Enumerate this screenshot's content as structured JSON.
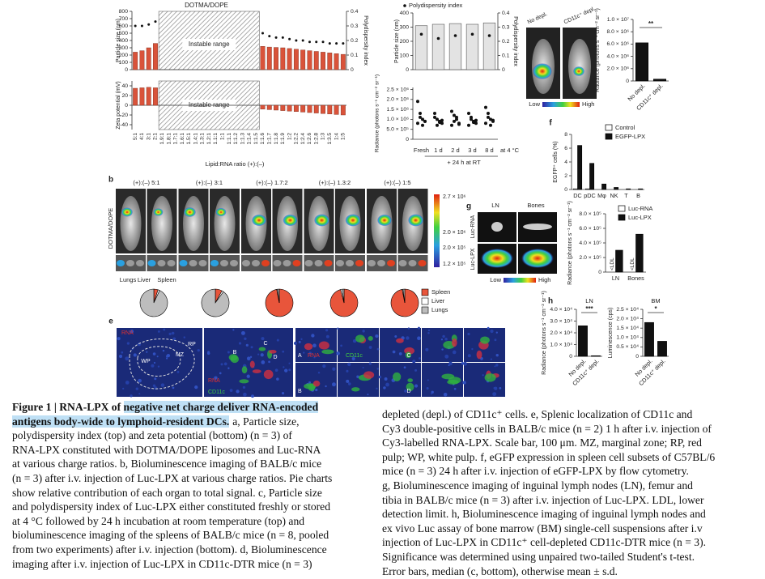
{
  "figure": {
    "a": {
      "title": "DOTMA/DOPE",
      "instable": "Instable range",
      "xlabel": "Lipid:RNA ratio (+):(–)",
      "categories": [
        "5:1",
        "4:1",
        "3:1",
        "2:1",
        "1.9:1",
        "1.8:1",
        "1.7:1",
        "1.6:1",
        "1.5:1",
        "1.4:1",
        "1.3:1",
        "1.2:1",
        "1.1:1",
        "1:1",
        "1:1.1",
        "1:1.2",
        "1:1.3",
        "1:1.4",
        "1:1.5",
        "1:1.6",
        "1:1.7",
        "1:1.8",
        "1:1.9",
        "1:2",
        "1:2.2",
        "1:2.4",
        "1:2.6",
        "1:2.8",
        "1:3",
        "1:3.5",
        "1:4",
        "1:5"
      ],
      "top": {
        "ylabel": "Particle size (nm)",
        "y2label": "Polydispersity index",
        "ylim": [
          0,
          800
        ],
        "yticks": [
          0,
          100,
          200,
          300,
          400,
          500,
          600,
          700,
          800
        ],
        "y2lim": [
          0,
          0.4
        ],
        "y2ticks": [
          0,
          0.1,
          0.2,
          0.3,
          0.4
        ],
        "size": [
          240,
          260,
          300,
          360,
          null,
          null,
          null,
          null,
          null,
          null,
          null,
          null,
          null,
          null,
          null,
          null,
          null,
          null,
          null,
          320,
          310,
          305,
          300,
          290,
          280,
          270,
          260,
          250,
          240,
          230,
          220,
          210
        ],
        "pdi": [
          0.3,
          0.3,
          0.31,
          0.33,
          null,
          null,
          null,
          null,
          null,
          null,
          null,
          null,
          null,
          null,
          null,
          null,
          null,
          null,
          null,
          0.25,
          0.23,
          0.22,
          0.22,
          0.21,
          0.2,
          0.2,
          0.19,
          0.19,
          0.19,
          0.18,
          0.18,
          0.18
        ]
      },
      "bottom": {
        "ylabel": "Zeta potential (mV)",
        "ylim": [
          -50,
          50
        ],
        "yticks": [
          -40,
          -20,
          0,
          20,
          40
        ],
        "values": [
          35,
          36,
          37,
          36,
          null,
          null,
          null,
          null,
          null,
          null,
          null,
          null,
          null,
          null,
          null,
          null,
          null,
          null,
          null,
          -8,
          -9,
          -10,
          -11,
          -12,
          -13,
          -14,
          -15,
          -16,
          -17,
          -18,
          -19,
          -20
        ]
      }
    },
    "b": {
      "label": "b",
      "side": "DOTMA/DOPE",
      "headers": [
        "(+):(–) 5:1",
        "(+):(–) 3:1",
        "(+):(–) 1.7:2",
        "(+):(–) 1.3:2",
        "(+):(–) 1:5"
      ],
      "scale": [
        "2.7 × 10⁶",
        "2.0 × 10⁶",
        "2.0 × 10⁵",
        "1.2 × 10⁵"
      ],
      "organs": [
        "Lungs",
        "Liver",
        "Spleen"
      ],
      "pies": {
        "series": [
          {
            "name": "Spleen",
            "color": "#e8553b"
          },
          {
            "name": "Liver",
            "color": "#ffffff"
          },
          {
            "name": "Lungs",
            "color": "#bdbdbd"
          }
        ],
        "values": [
          [
            5,
            2,
            93
          ],
          [
            8,
            2,
            90
          ],
          [
            97,
            1,
            2
          ],
          [
            96,
            2,
            2
          ],
          [
            97,
            1,
            2
          ]
        ]
      }
    },
    "c": {
      "legend": "Polydispersity index",
      "categories": [
        "Fresh",
        "1 d",
        "2 d",
        "3 d",
        "8 d"
      ],
      "note": "at 4 °C",
      "group": "+ 24 h at RT",
      "top": {
        "ylabel": "Particle size (nm)",
        "y2label": "Polydispersity index",
        "ylim": [
          0,
          400
        ],
        "yticks": [
          0,
          100,
          200,
          300,
          400
        ],
        "y2lim": [
          0,
          0.4
        ],
        "y2ticks": [
          0,
          0.1,
          0.2,
          0.3,
          0.4
        ],
        "size": [
          310,
          320,
          325,
          320,
          330
        ],
        "pdi": [
          0.25,
          0.22,
          0.24,
          0.25,
          0.24
        ]
      },
      "bottom": {
        "ylabel": "Radiance (photons s⁻¹ cm⁻² sr⁻¹)",
        "ylim": [
          0,
          2600000
        ],
        "yticks": [
          0,
          {
            "value": 500000,
            "label": "5.0 × 10⁵"
          },
          {
            "value": 1000000,
            "label": "1.0 × 10⁶"
          },
          {
            "value": 1500000,
            "label": "1.5 × 10⁶"
          },
          {
            "value": 2000000,
            "label": "2.0 × 10⁶"
          },
          {
            "value": 2500000,
            "label": "2.5 × 10⁶"
          }
        ],
        "points": [
          [
            1900000,
            1300000,
            1000000,
            900000,
            800000,
            1100000,
            700000,
            900000
          ],
          [
            1300000,
            1000000,
            900000,
            800000,
            1100000,
            700000,
            850000,
            950000
          ],
          [
            1400000,
            1200000,
            1000000,
            800000,
            700000,
            900000,
            1100000,
            750000
          ],
          [
            1300000,
            1100000,
            900000,
            800000,
            700000,
            1000000,
            850000,
            950000
          ],
          [
            1600000,
            1300000,
            1000000,
            900000,
            800000,
            1100000,
            700000,
            950000
          ]
        ]
      }
    },
    "d": {
      "images": [
        "No depl.",
        "CD11c⁺ depl."
      ],
      "low": "Low",
      "high": "High",
      "chart": {
        "ylabel": "Radiance (photons s⁻¹ cm⁻² sr⁻¹)",
        "ylim": [
          0,
          10000000
        ],
        "yticks": [
          0,
          {
            "value": 2000000,
            "label": "2.0 × 10⁶"
          },
          {
            "value": 4000000,
            "label": "4.0 × 10⁶"
          },
          {
            "value": 6000000,
            "label": "6.0 × 10⁶"
          },
          {
            "value": 8000000,
            "label": "8.0 × 10⁶"
          },
          {
            "value": 10000000,
            "label": "1.0 × 10⁷"
          }
        ],
        "categories": [
          "No depl.",
          "CD11c⁺ depl."
        ],
        "series": [
          {
            "color": "#111111",
            "values": [
              6200000,
              300000
            ]
          }
        ],
        "sig": "**"
      }
    },
    "e": {
      "label": "e",
      "labels": [
        "RNA",
        "WP",
        "MZ",
        "RP",
        "B",
        "C",
        "D",
        "RNA",
        "CD11c",
        "A",
        "RNA",
        "CD11c",
        "C",
        "B",
        "D"
      ]
    },
    "f": {
      "label": "f",
      "chart": {
        "ylabel": "EGFP⁺ cells (%)",
        "ylim": [
          0,
          8
        ],
        "yticks": [
          0,
          2,
          4,
          6,
          8
        ],
        "categories": [
          "DC",
          "pDC",
          "Mφ",
          "NK",
          "T",
          "B"
        ],
        "series": [
          {
            "name": "Control",
            "color": "#ffffff",
            "values": [
              0.1,
              0.1,
              0,
              0,
              0,
              0
            ]
          },
          {
            "name": "EGFP-LPX",
            "color": "#111111",
            "values": [
              6.4,
              3.8,
              0.8,
              0.3,
              0.1,
              0.1
            ]
          }
        ]
      }
    },
    "g": {
      "label": "g",
      "cols": [
        "LN",
        "Bones"
      ],
      "rows": [
        "Luc-RNA",
        "Luc-LPX"
      ],
      "low": "Low",
      "high": "High",
      "chart": {
        "ylabel": "Radiance (photons s⁻¹ cm⁻² sr⁻¹)",
        "ylim": [
          0,
          800000
        ],
        "yticks": [
          0,
          {
            "value": 200000,
            "label": "2.0 × 10⁵"
          },
          {
            "value": 400000,
            "label": "4.0 × 10⁵"
          },
          {
            "value": 600000,
            "label": "6.0 × 10⁵"
          },
          {
            "value": 800000,
            "label": "8.0 × 10⁵"
          }
        ],
        "categories": [
          "LN",
          "Bones"
        ],
        "series": [
          {
            "name": "Luc-RNA",
            "color": "#ffffff",
            "values": [
              null,
              null
            ]
          },
          {
            "name": "Luc-LPX",
            "color": "#111111",
            "values": [
              300000,
              520000
            ]
          }
        ],
        "ldl": [
          "<LDL",
          "<LDL"
        ]
      }
    },
    "h": {
      "label": "h",
      "ln": {
        "title": "LN",
        "ylabel": "Radiance (photons s⁻¹ cm⁻² sr⁻¹)",
        "ylim": [
          0,
          40000
        ],
        "yticks": [
          0,
          {
            "value": 10000,
            "label": "1.0 × 10⁴"
          },
          {
            "value": 20000,
            "label": "2.0 × 10⁴"
          },
          {
            "value": 30000,
            "label": "3.0 × 10⁴"
          },
          {
            "value": 40000,
            "label": "4.0 × 10⁴"
          }
        ],
        "categories": [
          "No depl.",
          "CD11c⁺ depl."
        ],
        "series": [
          {
            "color": "#111111",
            "values": [
              26000,
              500
            ]
          }
        ],
        "sig": "***"
      },
      "bm": {
        "title": "BM",
        "ylabel": "Luminescence (cps)",
        "ylim": [
          0,
          25000
        ],
        "yticks": [
          0,
          {
            "value": 5000,
            "label": "0.5 × 10⁴"
          },
          {
            "value": 10000,
            "label": "1.0 × 10⁴"
          },
          {
            "value": 15000,
            "label": "1.5 × 10⁴"
          },
          {
            "value": 20000,
            "label": "2.0 × 10⁴"
          },
          {
            "value": 25000,
            "label": "2.5 × 10⁴"
          }
        ],
        "categories": [
          "No depl.",
          "CD11c⁺ depl."
        ],
        "series": [
          {
            "color": "#111111",
            "values": [
              18000,
              8000
            ]
          }
        ],
        "sig": "*"
      }
    }
  },
  "caption": {
    "title": [
      "Figure 1 | RNA-LPX of ",
      "negative net charge deliver RNA-encoded",
      "antigens body-wide to lymphoid-resident DCs."
    ],
    "left": [
      "a, Particle size,",
      "polydispersity index (top) and zeta potential (bottom) (n = 3) of",
      "RNA-LPX constituted with DOTMA/DOPE liposomes and Luc-RNA",
      "at various charge ratios. b, Bioluminescence imaging of BALB/c mice",
      "(n = 3) after i.v. injection of Luc-LPX at various charge ratios. Pie charts",
      "show relative contribution of each organ to total signal. c, Particle size",
      "and polydispersity index of Luc-LPX either constituted freshly or stored",
      "at 4 °C followed by 24 h incubation at room temperature (top) and",
      "bioluminescence imaging of the spleens of BALB/c mice (n = 8, pooled",
      "from two experiments) after i.v. injection (bottom). d, Bioluminescence",
      "imaging after i.v. injection of Luc-LPX in CD11c-DTR mice (n = 3)"
    ],
    "right": [
      "depleted (depl.) of CD11c⁺ cells. e, Splenic localization of CD11c and",
      "Cy3 double-positive cells in BALB/c mice (n = 2) 1 h after i.v. injection of",
      "Cy3-labelled RNA-LPX. Scale bar, 100 μm. MZ, marginal zone; RP, red",
      "pulp; WP, white pulp. f, eGFP expression in spleen cell subsets of C57BL/6",
      "mice (n = 3) 24 h after i.v. injection of eGFP-LPX by flow cytometry.",
      "g, Bioluminescence imaging of inguinal lymph nodes (LN), femur and",
      "tibia in BALB/c mice (n = 3) after i.v. injection of Luc-LPX. LDL, lower",
      "detection limit. h, Bioluminescence imaging of inguinal lymph nodes and",
      "ex vivo Luc assay of bone marrow (BM) single-cell suspensions after i.v",
      "injection of Luc-LPX in CD11c⁺ cell-depleted CD11c-DTR mice (n = 3).",
      "Significance was determined using unpaired two-tailed Student's t-test.",
      "Error bars, median (c, bottom), otherwise mean ± s.d."
    ]
  }
}
